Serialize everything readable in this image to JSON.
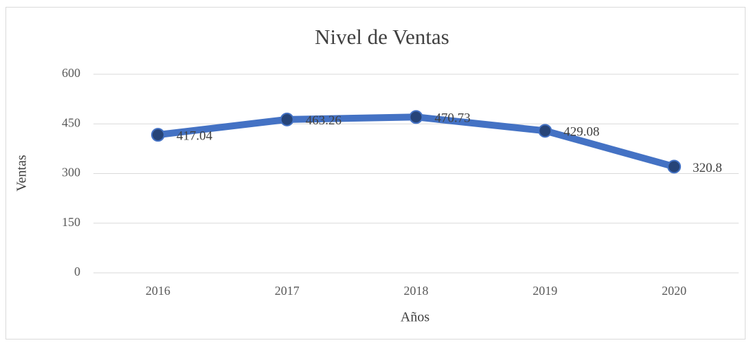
{
  "chart_data": {
    "type": "line",
    "title": "Nivel de Ventas",
    "x_label": "Años",
    "y_label": "Ventas",
    "categories": [
      "2016",
      "2017",
      "2018",
      "2019",
      "2020"
    ],
    "series": [
      {
        "name": "Ventas",
        "color": "#4472c4",
        "marker_color": "#264478",
        "values": [
          417.04,
          463.26,
          470.73,
          429.08,
          320.8
        ]
      }
    ],
    "ylim": [
      0,
      600
    ],
    "yticks": [
      0,
      150,
      300,
      450,
      600
    ],
    "grid": true
  }
}
